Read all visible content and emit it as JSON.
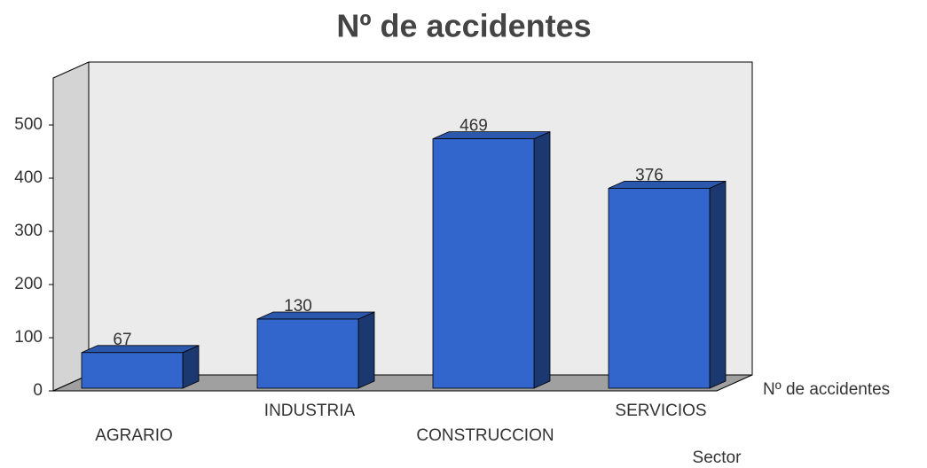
{
  "chart_data": {
    "type": "bar",
    "title": "Nº de accidentes",
    "categories": [
      "AGRARIO",
      "INDUSTRIA",
      "CONSTRUCCION",
      "SERVICIOS"
    ],
    "series": [
      {
        "name": "Nº de accidentes",
        "color": "#3366cc",
        "values": [
          67,
          130,
          469,
          376
        ]
      }
    ],
    "x_label": "Sector",
    "ylim": [
      0,
      600
    ],
    "yticks": [
      0,
      100,
      200,
      300,
      400,
      500
    ],
    "grid": false
  }
}
